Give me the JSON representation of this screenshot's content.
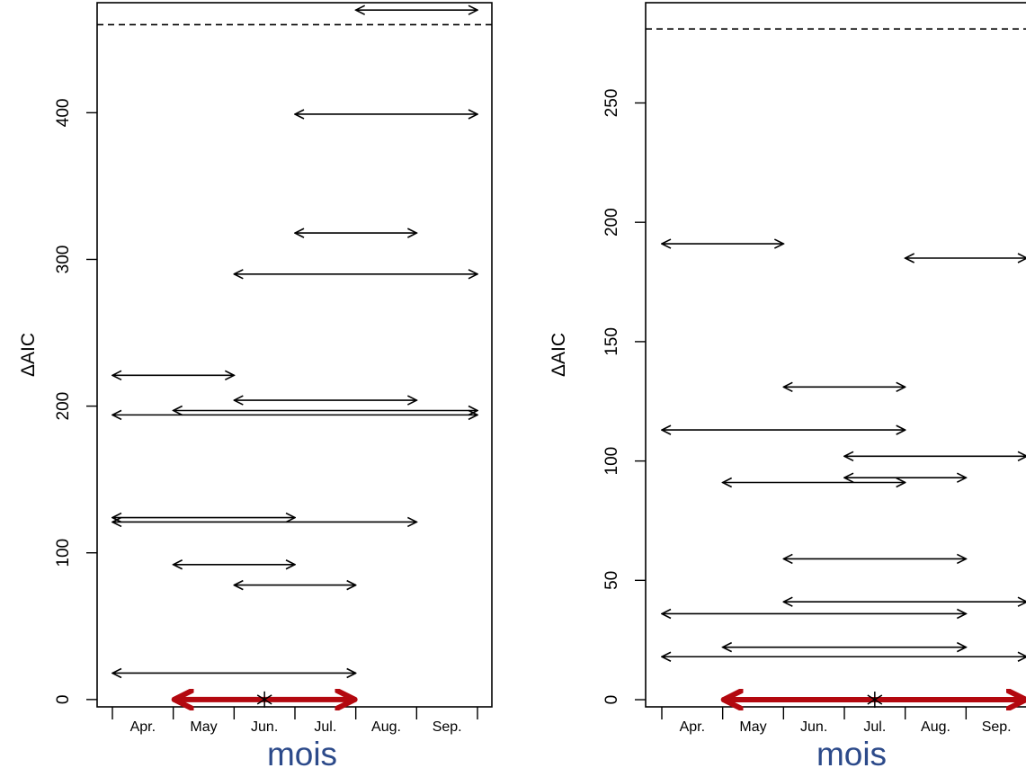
{
  "colors": {
    "axis": "#000000",
    "arrow": "#000000",
    "highlight": "#b3080f",
    "xlabel": "#2c4a8a"
  },
  "chart_data": [
    {
      "type": "interval",
      "ylabel": "ΔAIC",
      "xlabel": "mois",
      "categories": [
        "Apr.",
        "May",
        "Jun.",
        "Jul.",
        "Aug.",
        "Sep."
      ],
      "x_boundaries": [
        0,
        1,
        2,
        3,
        4,
        5,
        6
      ],
      "ylim": [
        -5,
        475
      ],
      "yticks": [
        0,
        100,
        200,
        300,
        400
      ],
      "threshold": 460,
      "intervals": [
        {
          "start": 4,
          "end": 6,
          "y": 470
        },
        {
          "start": 3,
          "end": 6,
          "y": 399
        },
        {
          "start": 3,
          "end": 5,
          "y": 318
        },
        {
          "start": 2,
          "end": 6,
          "y": 290
        },
        {
          "start": 0,
          "end": 2,
          "y": 221
        },
        {
          "start": 2,
          "end": 5,
          "y": 204
        },
        {
          "start": 1,
          "end": 6,
          "y": 197
        },
        {
          "start": 0,
          "end": 6,
          "y": 194
        },
        {
          "start": 0,
          "end": 3,
          "y": 124
        },
        {
          "start": 0,
          "end": 5,
          "y": 121
        },
        {
          "start": 1,
          "end": 3,
          "y": 92
        },
        {
          "start": 2,
          "end": 4,
          "y": 78
        },
        {
          "start": 0,
          "end": 4,
          "y": 18
        }
      ],
      "best": {
        "start": 1,
        "end": 4,
        "y": 0,
        "marker_x": 2.5
      }
    },
    {
      "type": "interval",
      "ylabel": "ΔAIC",
      "xlabel": "mois",
      "categories": [
        "Apr.",
        "May",
        "Jun.",
        "Jul.",
        "Aug.",
        "Sep."
      ],
      "x_boundaries": [
        0,
        1,
        2,
        3,
        4,
        5,
        6
      ],
      "ylim": [
        -3,
        292
      ],
      "yticks": [
        0,
        50,
        100,
        150,
        200,
        250
      ],
      "threshold": 281,
      "intervals": [
        {
          "start": 0,
          "end": 2,
          "y": 191
        },
        {
          "start": 4,
          "end": 6,
          "y": 185
        },
        {
          "start": 2,
          "end": 4,
          "y": 131
        },
        {
          "start": 0,
          "end": 4,
          "y": 113
        },
        {
          "start": 3,
          "end": 6,
          "y": 102
        },
        {
          "start": 3,
          "end": 5,
          "y": 93
        },
        {
          "start": 1,
          "end": 4,
          "y": 91
        },
        {
          "start": 2,
          "end": 5,
          "y": 59
        },
        {
          "start": 2,
          "end": 6,
          "y": 41
        },
        {
          "start": 0,
          "end": 5,
          "y": 36
        },
        {
          "start": 1,
          "end": 5,
          "y": 22
        },
        {
          "start": 0,
          "end": 6,
          "y": 18
        }
      ],
      "best": {
        "start": 1,
        "end": 6,
        "y": 0,
        "marker_x": 3.5
      }
    }
  ]
}
